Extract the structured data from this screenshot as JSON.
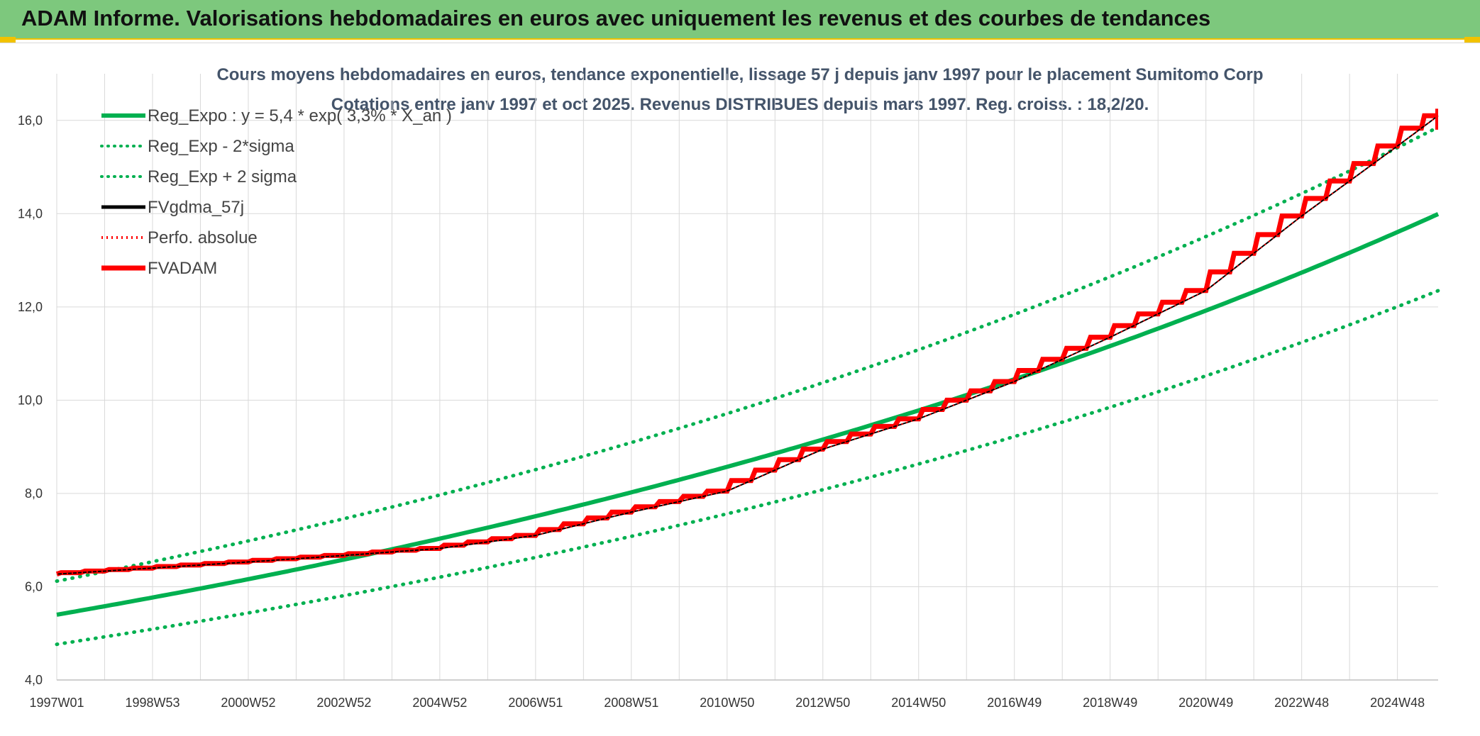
{
  "banner": {
    "title": "ADAM Informe. Valorisations hebdomadaires en euros avec uniquement les revenus et des courbes de tendances"
  },
  "chart_data": {
    "type": "line",
    "title": "Cours moyens hebdomadaires en euros, tendance exponentielle, lissage 57 j depuis janv 1997 pour le placement Sumitomo Corp",
    "subtitle": "Cotations entre janv 1997 et oct 2025. Revenus DISTRIBUES depuis mars 1997. Reg. croiss. : 18,2/20.",
    "x_tick_labels": [
      "1997W01",
      "1998W53",
      "2000W52",
      "2002W52",
      "2004W52",
      "2006W51",
      "2008W51",
      "2010W50",
      "2012W50",
      "2014W50",
      "2016W49",
      "2018W49",
      "2020W49",
      "2022W48",
      "2024W48"
    ],
    "x_tick_years": [
      1997.0,
      1999.0,
      2001.0,
      2003.0,
      2005.0,
      2007.0,
      2009.0,
      2011.0,
      2013.0,
      2015.0,
      2017.0,
      2019.0,
      2021.0,
      2023.0,
      2025.0
    ],
    "xlim": [
      1997.0,
      2025.85
    ],
    "ylim": [
      4.0,
      17.0
    ],
    "y_ticks": [
      4.0,
      6.0,
      8.0,
      10.0,
      12.0,
      14.0,
      16.0
    ],
    "y_tick_labels": [
      "4,0",
      "6,0",
      "8,0",
      "10,0",
      "12,0",
      "14,0",
      "16,0"
    ],
    "grid": true,
    "legend_position": "top-left",
    "regression": {
      "a": 5.4,
      "rate": 0.033,
      "sigma_offset_log": 0.125
    },
    "series": [
      {
        "name": "Reg_Expo : y = 5,4 * exp( 3,3% *  X_an )",
        "color": "#00b050",
        "style": "solid",
        "x": [
          1997.0,
          2000.0,
          2003.0,
          2006.0,
          2009.0,
          2012.0,
          2015.0,
          2018.0,
          2021.0,
          2024.0,
          2025.85
        ],
        "values": [
          5.45,
          5.99,
          6.59,
          7.23,
          7.95,
          8.74,
          9.6,
          10.6,
          11.6,
          12.8,
          13.9
        ]
      },
      {
        "name": "Reg_Exp - 2*sigma",
        "color": "#00b050",
        "style": "dotted",
        "x": [
          1997.0,
          2000.0,
          2003.0,
          2006.0,
          2009.0,
          2012.0,
          2015.0,
          2018.0,
          2021.0,
          2024.0,
          2025.85
        ],
        "values": [
          4.82,
          5.3,
          5.82,
          6.39,
          7.02,
          7.72,
          8.48,
          9.35,
          10.3,
          11.3,
          12.3
        ]
      },
      {
        "name": "Reg_Exp + 2 sigma",
        "color": "#00b050",
        "style": "dotted",
        "x": [
          1997.0,
          2000.0,
          2003.0,
          2006.0,
          2009.0,
          2012.0,
          2015.0,
          2018.0,
          2021.0,
          2024.0,
          2025.85
        ],
        "values": [
          6.16,
          6.77,
          7.45,
          8.18,
          8.99,
          9.89,
          10.86,
          12.0,
          13.2,
          14.5,
          15.7
        ]
      },
      {
        "name": "FVgdma_57j",
        "color": "#000000",
        "style": "solid",
        "x": [
          1997.0,
          1999.0,
          2001.0,
          2003.0,
          2005.0,
          2007.0,
          2009.0,
          2011.0,
          2013.0,
          2015.0,
          2017.0,
          2019.0,
          2021.0,
          2023.0,
          2025.0,
          2025.85
        ],
        "values": [
          6.27,
          6.4,
          6.53,
          6.67,
          6.82,
          7.1,
          7.6,
          8.05,
          8.95,
          9.6,
          10.4,
          11.35,
          12.35,
          13.95,
          15.45,
          16.1
        ]
      },
      {
        "name": "Perfo. absolue",
        "color": "#ff0000",
        "style": "dotted",
        "x": [
          1997.0,
          1999.0,
          2001.0,
          2003.0,
          2005.0,
          2007.0,
          2009.0,
          2011.0,
          2013.0,
          2015.0,
          2017.0,
          2019.0,
          2021.0,
          2023.0,
          2025.0,
          2025.85
        ],
        "values": [
          6.27,
          6.4,
          6.53,
          6.67,
          6.82,
          7.1,
          7.6,
          8.05,
          8.95,
          9.6,
          10.4,
          11.35,
          12.35,
          13.95,
          15.45,
          16.1
        ]
      },
      {
        "name": "FVADAM",
        "color": "#ff0000",
        "style": "solid",
        "x": [
          1997.0,
          1999.0,
          2001.0,
          2003.0,
          2005.0,
          2007.0,
          2009.0,
          2011.0,
          2013.0,
          2015.0,
          2017.0,
          2019.0,
          2021.0,
          2023.0,
          2025.0,
          2025.85
        ],
        "values": [
          6.27,
          6.4,
          6.53,
          6.67,
          6.82,
          7.1,
          7.6,
          8.05,
          8.95,
          9.6,
          10.4,
          11.35,
          12.35,
          13.95,
          15.45,
          16.1
        ]
      }
    ]
  }
}
